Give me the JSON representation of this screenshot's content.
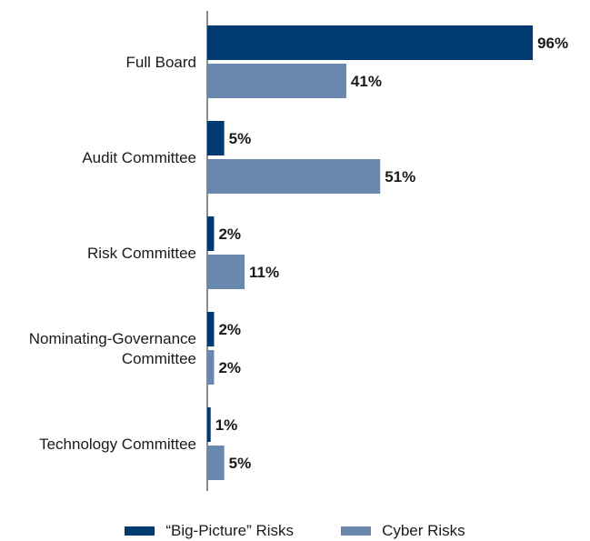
{
  "chart_data": {
    "type": "bar",
    "orientation": "horizontal",
    "categories": [
      [
        "Full Board"
      ],
      [
        "Audit Committee"
      ],
      [
        "Risk Committee"
      ],
      [
        "Nominating-Governance",
        "Committee"
      ],
      [
        "Technology Committee"
      ]
    ],
    "series": [
      {
        "name": "“Big-Picture” Risks",
        "color": "#003a70",
        "values": [
          96,
          5,
          2,
          2,
          1
        ]
      },
      {
        "name": "Cyber Risks",
        "color": "#6a88ad",
        "values": [
          41,
          51,
          11,
          2,
          5
        ]
      }
    ],
    "value_suffix": "%",
    "xlim": [
      0,
      100
    ],
    "legend_position": "bottom",
    "grid": false,
    "title": "",
    "xlabel": "",
    "ylabel": ""
  }
}
